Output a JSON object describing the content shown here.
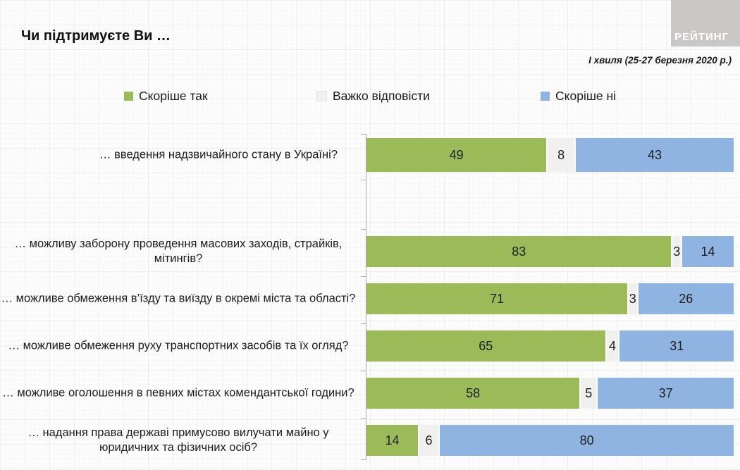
{
  "header": {
    "title": "Чи підтримуєте Ви …",
    "subtitle": "І хвиля (25-27 березня 2020 р.)",
    "logo_text": "РЕЙТИНГ"
  },
  "legend": {
    "items": [
      {
        "label": "Скоріше так",
        "color": "#9ABB58"
      },
      {
        "label": "Важко відповісти",
        "color": "#F0F0EE"
      },
      {
        "label": "Скоріше ні",
        "color": "#8FB4E2"
      }
    ]
  },
  "chart_data": {
    "type": "bar",
    "orientation": "horizontal",
    "stacked": true,
    "xlim": [
      0,
      100
    ],
    "grid": false,
    "legend_position": "top",
    "data_labels": true,
    "categories": [
      "… введення надзвичайного стану в Україні?",
      "… можливу заборону проведення масових заходів, страйків, мітингів?",
      "… можливе обмеження в’їзду та виїзду в окремі міста та області?",
      "… можливе обмеження руху транспортних засобів та їх огляд?",
      "… можливе оголошення в певних містах комендантської години?",
      "… надання  права державі примусово вилучати майно у юридичних та фізичних осіб?"
    ],
    "series": [
      {
        "name": "Скоріше так",
        "color": "#9ABB58",
        "values": [
          49,
          83,
          71,
          65,
          58,
          14
        ]
      },
      {
        "name": "Важко відповісти",
        "color": "#F0F0EE",
        "values": [
          8,
          3,
          3,
          4,
          5,
          6
        ]
      },
      {
        "name": "Скоріше ні",
        "color": "#8FB4E2",
        "values": [
          43,
          14,
          26,
          31,
          37,
          80
        ]
      }
    ],
    "note": "first category is visually separated from the other five by an empty band"
  }
}
